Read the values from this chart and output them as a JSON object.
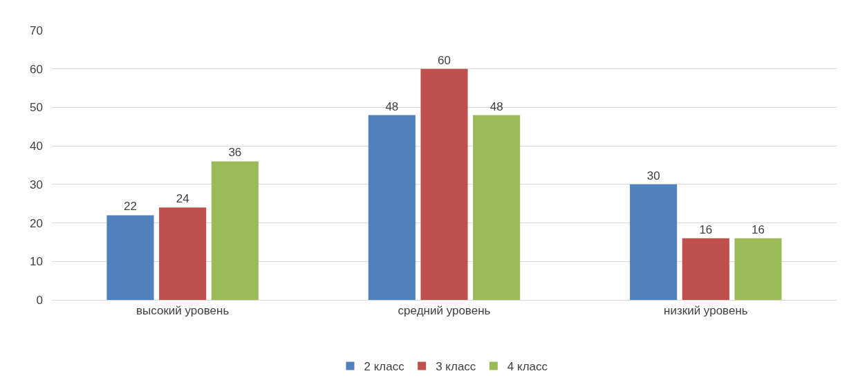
{
  "chart_data": {
    "type": "bar",
    "categories": [
      "высокий уровень",
      "средний уровень",
      "низкий уровень"
    ],
    "series": [
      {
        "name": "2 класс",
        "color": "#4f81bd",
        "values": [
          22,
          48,
          30
        ]
      },
      {
        "name": "3 класс",
        "color": "#c0504d",
        "values": [
          24,
          60,
          16
        ]
      },
      {
        "name": "4 класс",
        "color": "#9bbb59",
        "values": [
          36,
          48,
          16
        ]
      }
    ],
    "ylim": [
      0,
      70
    ],
    "yticks": [
      0,
      10,
      20,
      30,
      40,
      50,
      60,
      70
    ],
    "grid": "y",
    "legend": "bottom",
    "data_labels": true
  }
}
